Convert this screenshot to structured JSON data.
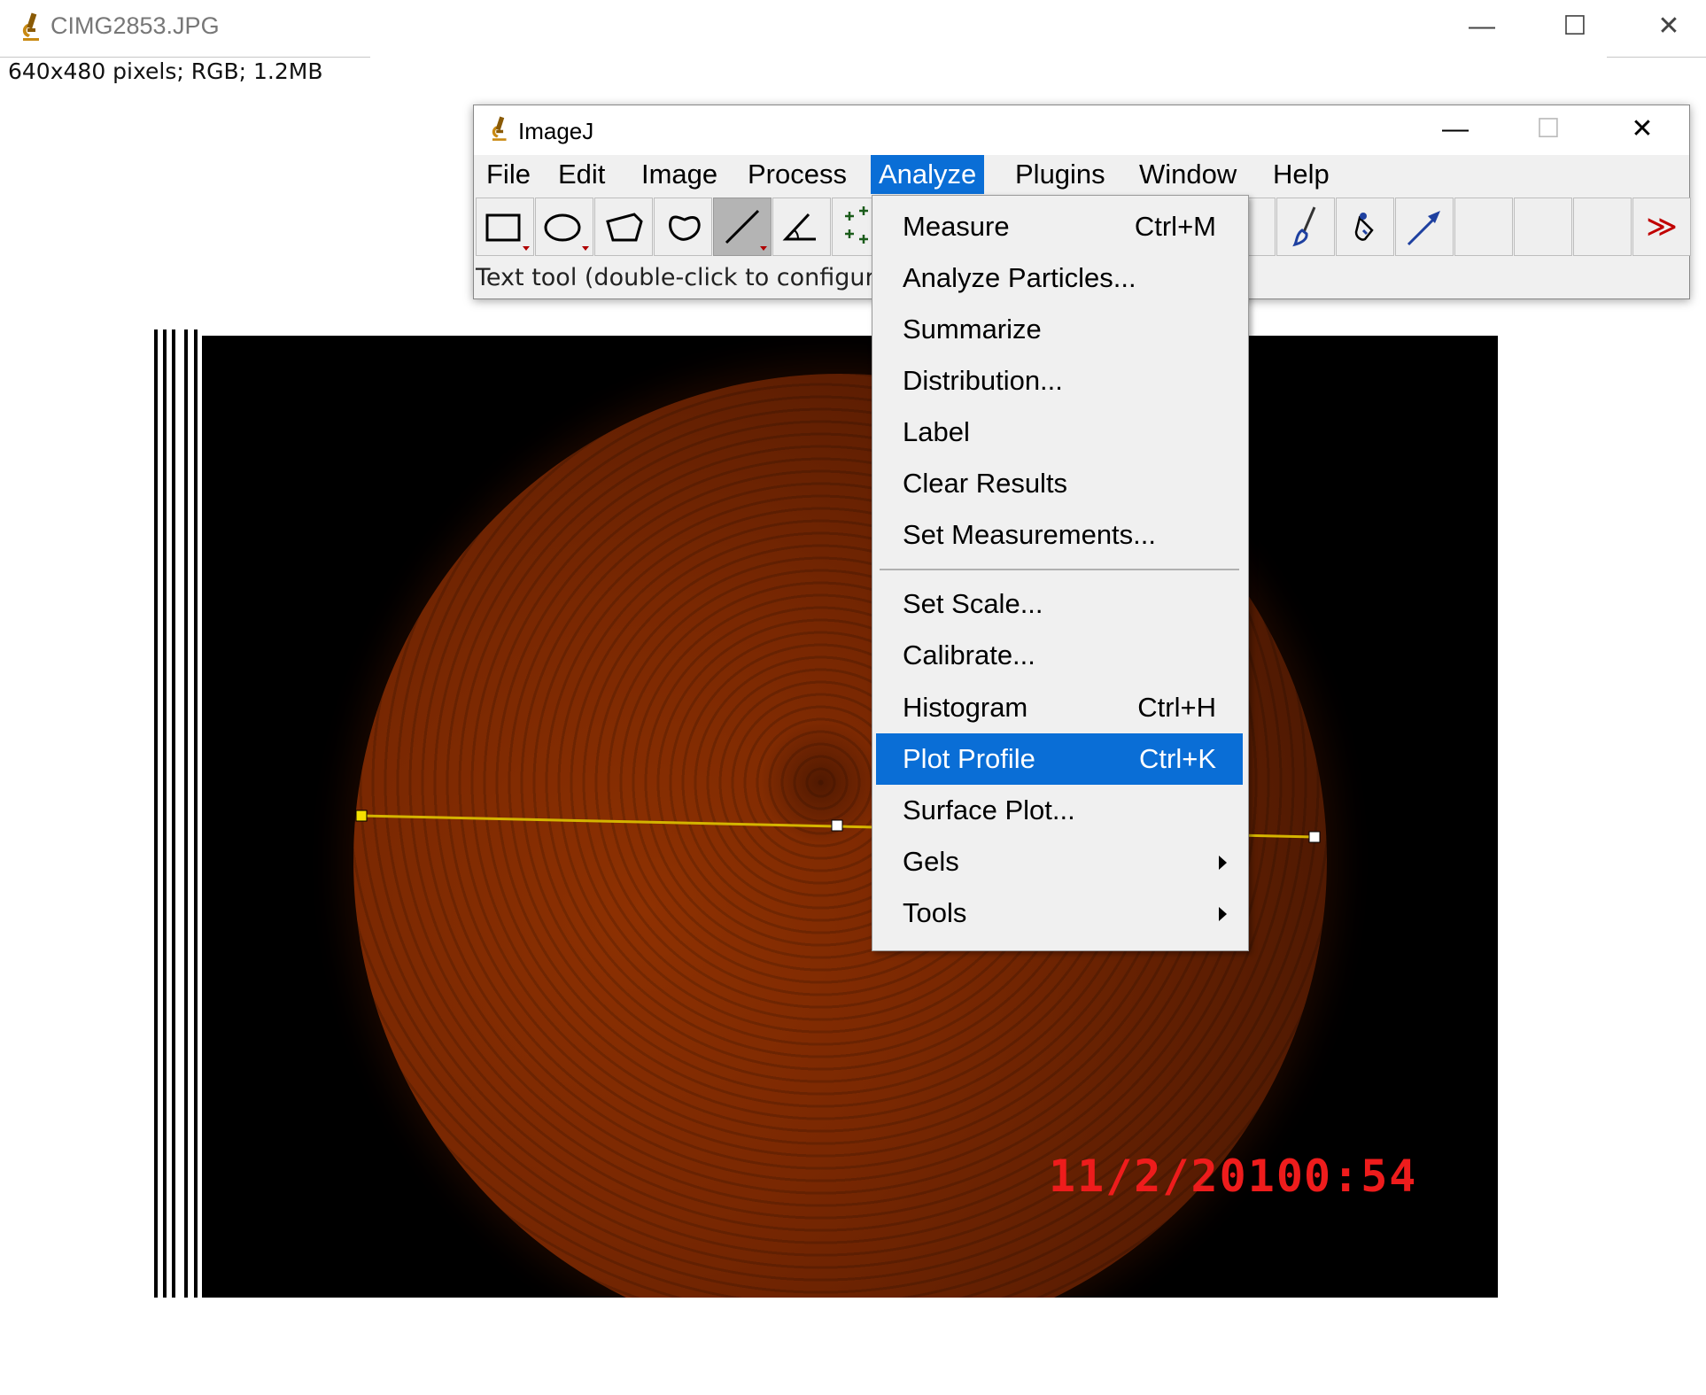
{
  "image_window": {
    "title": "CIMG2853.JPG",
    "info": "640x480 pixels; RGB; 1.2MB",
    "minimize": "—",
    "maximize": "☐",
    "close": "✕",
    "overlay_date": "11/2/2010",
    "overlay_time": "0:54",
    "line_color": "#d4b400"
  },
  "imagej": {
    "title": "ImageJ",
    "minimize": "—",
    "maximize": "☐",
    "close": "✕",
    "menus": [
      "File",
      "Edit",
      "Image",
      "Process",
      "Analyze",
      "Plugins",
      "Window",
      "Help"
    ],
    "active_menu": "Analyze",
    "tools": [
      "rectangle-tool-icon",
      "oval-tool-icon",
      "polygon-tool-icon",
      "freehand-tool-icon",
      "line-tool-icon",
      "angle-tool-icon",
      "point-tool-icon",
      "wand-tool-icon",
      "brush-tool-icon",
      "dropper-tool-icon",
      "arrow-tool-icon",
      "empty-slot",
      "empty-slot",
      "empty-slot",
      "more-tools-icon"
    ],
    "more_tools_glyph": "≫",
    "status": "Text tool (double-click to configure"
  },
  "analyze_menu": {
    "items": [
      {
        "label": "Measure",
        "shortcut": "Ctrl+M"
      },
      {
        "label": "Analyze Particles...",
        "shortcut": ""
      },
      {
        "label": "Summarize",
        "shortcut": ""
      },
      {
        "label": "Distribution...",
        "shortcut": ""
      },
      {
        "label": "Label",
        "shortcut": ""
      },
      {
        "label": "Clear Results",
        "shortcut": ""
      },
      {
        "label": "Set Measurements...",
        "shortcut": ""
      },
      {
        "label": "Set Scale...",
        "shortcut": ""
      },
      {
        "label": "Calibrate...",
        "shortcut": ""
      },
      {
        "label": "Histogram",
        "shortcut": "Ctrl+H"
      },
      {
        "label": "Plot Profile",
        "shortcut": "Ctrl+K"
      },
      {
        "label": "Surface Plot...",
        "shortcut": ""
      },
      {
        "label": "Gels",
        "shortcut": ""
      },
      {
        "label": "Tools",
        "shortcut": ""
      }
    ],
    "highlighted": "Plot Profile"
  },
  "colors": {
    "menu_highlight": "#0a6ed6",
    "overlay_text": "#ee1c1c"
  }
}
